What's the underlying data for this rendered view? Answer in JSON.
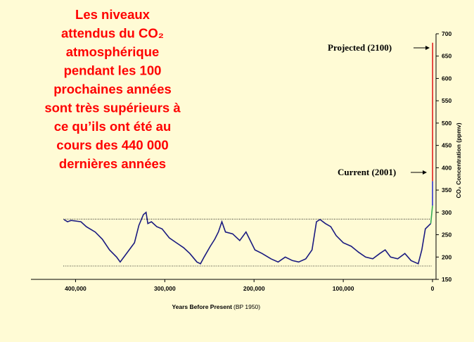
{
  "chart_data": {
    "type": "line",
    "title": [
      "Les niveaux",
      "attendus du CO₂",
      "atmosphérique",
      "pendant les 100",
      "prochaines années",
      "sont très supérieurs à",
      "ce qu’ils ont été au",
      "cours des 440 000",
      "dernières années"
    ],
    "x_label": "Years Before Present",
    "x_label_note": "(BP 1950)",
    "y_label": "CO₂ Concentration (ppmv)",
    "annotations": [
      "Projected (2100)",
      "Current (2001)"
    ],
    "xlim": [
      450000,
      0
    ],
    "xticks": [
      {
        "value": 400000,
        "label": "400,000"
      },
      {
        "value": 300000,
        "label": "300,000"
      },
      {
        "value": 200000,
        "label": "200,000"
      },
      {
        "value": 100000,
        "label": "100,000"
      },
      0
    ],
    "ylim": [
      150,
      700
    ],
    "yticks": [
      150,
      200,
      250,
      300,
      350,
      400,
      450,
      500,
      550,
      600,
      650,
      700
    ],
    "reference_lines": [
      285,
      180
    ],
    "series": [
      {
        "color": "#1a1a80",
        "x": [
          413000,
          409000,
          405000,
          394000,
          388000,
          378000,
          370000,
          362000,
          354000,
          350000,
          344000,
          338000,
          334000,
          329000,
          324000,
          321000,
          319000,
          315000,
          309000,
          303000,
          295000,
          287000,
          279000,
          272000,
          264000,
          260000,
          256000,
          249000,
          244000,
          240000,
          236000,
          232000,
          224000,
          216000,
          209000,
          205000,
          199000,
          191000,
          181000,
          173000,
          165000,
          157000,
          150000,
          142000,
          135000,
          130000,
          126000,
          120000,
          114000,
          108000,
          100000,
          91000,
          83000,
          75000,
          67000,
          59000,
          53000,
          47000,
          39000,
          31000,
          24000,
          16000,
          12000,
          8000,
          2000
        ],
        "values": [
          284,
          279,
          282,
          279,
          268,
          256,
          240,
          216,
          200,
          189,
          205,
          221,
          232,
          271,
          295,
          300,
          275,
          279,
          268,
          263,
          243,
          232,
          221,
          208,
          189,
          185,
          200,
          224,
          240,
          256,
          279,
          256,
          252,
          237,
          256,
          240,
          216,
          208,
          196,
          189,
          200,
          192,
          189,
          196,
          216,
          279,
          284,
          275,
          268,
          248,
          232,
          224,
          211,
          200,
          196,
          208,
          216,
          200,
          196,
          208,
          192,
          185,
          216,
          263,
          275
        ]
      },
      {
        "color": "#33aa55",
        "x": [
          2000,
          0
        ],
        "values": [
          275,
          315
        ]
      },
      {
        "color": "#3333cc",
        "x": [
          0,
          -51
        ],
        "values": [
          315,
          370
        ]
      },
      {
        "color": "#e02020",
        "x": [
          -51,
          -150
        ],
        "values": [
          370,
          680
        ]
      }
    ]
  }
}
